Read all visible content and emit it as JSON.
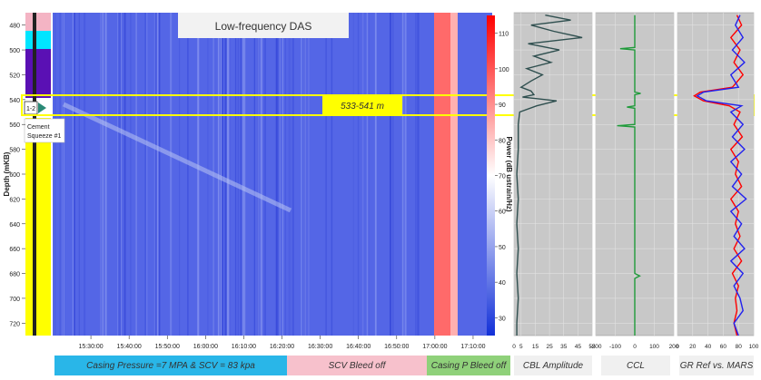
{
  "title": "Low-frequency DAS",
  "zone_label": "533-541 m",
  "depth_axis": {
    "label": "Depth (mKB)",
    "ticks": [
      480,
      500,
      520,
      540,
      560,
      580,
      600,
      620,
      640,
      660,
      680,
      700,
      720
    ]
  },
  "left_track": {
    "tag": "1-2",
    "annotation_line1": "Cement",
    "annotation_line2": "Squeeze #1"
  },
  "colorbar": {
    "label": "Power (dB ustrain/Hz)",
    "ticks": [
      30,
      40,
      50,
      60,
      70,
      80,
      90,
      100,
      110
    ]
  },
  "time_axis": {
    "ticks": [
      "15:30:00",
      "15:40:00",
      "15:50:00",
      "16:00:00",
      "16:10:00",
      "16:20:00",
      "16:30:00",
      "16:40:00",
      "16:50:00",
      "17:00:00",
      "17:10:00"
    ]
  },
  "phases": [
    {
      "label": "Casing Pressure =7 MPA & SCV = 83 kpa",
      "color": "#29b6e8"
    },
    {
      "label": "SCV Bleed off",
      "color": "#f7c1cc"
    },
    {
      "label": "Casing P Bleed off",
      "color": "#8fd17a"
    }
  ],
  "tracks": [
    {
      "title": "CBL Amplitude",
      "ticks": [
        "0",
        "5",
        "15",
        "25",
        "35",
        "45",
        "55"
      ]
    },
    {
      "title": "CCL",
      "ticks": [
        "-200",
        "-100",
        "0",
        "100",
        "200"
      ]
    },
    {
      "title": "GR Ref vs. MARS",
      "ticks": [
        "0",
        "20",
        "40",
        "60",
        "80",
        "100"
      ]
    }
  ],
  "chart_data": {
    "type": "heatmap",
    "title": "Low-frequency DAS",
    "x_axis": {
      "type": "time",
      "range": [
        "15:20:00",
        "17:15:00"
      ]
    },
    "y_axis": {
      "label": "Depth (mKB)",
      "range": [
        470,
        730
      ],
      "reversed": true
    },
    "colorbar": {
      "label": "Power (dB ustrain/Hz)",
      "range": [
        25,
        115
      ],
      "colors": [
        "#1230d8",
        "#ffffff",
        "#ff0000"
      ]
    },
    "highlight_zone": {
      "label": "533-541 m",
      "depth_range": [
        533,
        541
      ]
    },
    "phases": [
      {
        "label": "Casing Pressure =7 MPA & SCV = 83 kpa",
        "start": "15:20:00",
        "end": "16:20:00"
      },
      {
        "label": "SCV Bleed off",
        "start": "16:20:00",
        "end": "16:57:00"
      },
      {
        "label": "Casing P Bleed off",
        "start": "16:57:00",
        "end": "17:15:00"
      }
    ],
    "tracks": [
      {
        "name": "CBL Amplitude",
        "range": [
          0,
          55
        ],
        "color": "#2f4f4f",
        "depth": [
          472,
          476,
          480,
          485,
          490,
          495,
          500,
          505,
          510,
          515,
          520,
          525,
          530,
          533,
          536,
          538,
          541,
          545,
          550,
          560,
          580,
          600,
          620,
          640,
          660,
          680,
          700,
          720,
          730
        ],
        "values": [
          22,
          40,
          12,
          28,
          48,
          10,
          32,
          14,
          26,
          9,
          20,
          12,
          5,
          12,
          14,
          6,
          30,
          16,
          4,
          3,
          3,
          2,
          3,
          2,
          3,
          2,
          3,
          2,
          2
        ]
      },
      {
        "name": "CCL",
        "range": [
          -200,
          200
        ],
        "color": "#1f9a3a",
        "depth": [
          472,
          498,
          499,
          500,
          534,
          535,
          536,
          545,
          546,
          547,
          560,
          561,
          562,
          600,
          640,
          680,
          682,
          684,
          700,
          730
        ],
        "values": [
          0,
          0,
          -75,
          0,
          0,
          30,
          0,
          0,
          -40,
          0,
          0,
          -90,
          0,
          0,
          0,
          0,
          25,
          0,
          0,
          0
        ]
      },
      {
        "name": "GR Ref",
        "range": [
          0,
          100
        ],
        "color": "#ff0000",
        "depth": [
          472,
          480,
          490,
          500,
          510,
          520,
          530,
          534,
          537,
          541,
          545,
          550,
          560,
          570,
          580,
          590,
          600,
          610,
          620,
          630,
          640,
          650,
          660,
          670,
          680,
          690,
          700,
          710,
          720,
          730
        ],
        "values": [
          78,
          84,
          70,
          82,
          74,
          86,
          72,
          30,
          22,
          34,
          68,
          82,
          74,
          85,
          70,
          80,
          76,
          84,
          70,
          80,
          76,
          82,
          74,
          84,
          72,
          80,
          76,
          78,
          74,
          78
        ]
      },
      {
        "name": "MARS",
        "range": [
          0,
          100
        ],
        "color": "#2222ee",
        "depth": [
          472,
          480,
          490,
          500,
          510,
          520,
          530,
          534,
          537,
          541,
          545,
          550,
          560,
          570,
          580,
          590,
          600,
          610,
          620,
          630,
          640,
          650,
          660,
          670,
          680,
          690,
          700,
          710,
          720,
          730
        ],
        "values": [
          82,
          76,
          86,
          72,
          88,
          70,
          80,
          34,
          26,
          38,
          84,
          70,
          86,
          72,
          88,
          70,
          84,
          72,
          90,
          70,
          84,
          74,
          88,
          70,
          86,
          74,
          82,
          86,
          74,
          80
        ]
      }
    ]
  }
}
